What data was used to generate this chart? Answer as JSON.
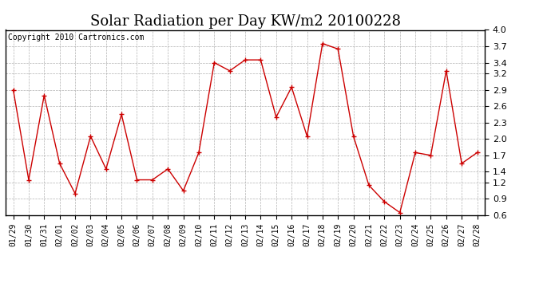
{
  "title": "Solar Radiation per Day KW/m2 20100228",
  "copyright": "Copyright 2010 Cartronics.com",
  "labels": [
    "01/29",
    "01/30",
    "01/31",
    "02/01",
    "02/02",
    "02/03",
    "02/04",
    "02/05",
    "02/06",
    "02/07",
    "02/08",
    "02/09",
    "02/10",
    "02/11",
    "02/12",
    "02/13",
    "02/14",
    "02/15",
    "02/16",
    "02/17",
    "02/18",
    "02/19",
    "02/20",
    "02/21",
    "02/22",
    "02/23",
    "02/24",
    "02/25",
    "02/26",
    "02/27",
    "02/28"
  ],
  "values": [
    2.9,
    1.25,
    2.8,
    1.55,
    1.0,
    2.05,
    1.45,
    2.45,
    1.25,
    1.25,
    1.45,
    1.05,
    1.75,
    3.4,
    3.25,
    3.45,
    3.45,
    2.4,
    2.95,
    2.05,
    3.75,
    3.65,
    2.05,
    1.15,
    0.85,
    0.65,
    1.75,
    1.7,
    3.25,
    1.55,
    1.75
  ],
  "line_color": "#cc0000",
  "marker": "+",
  "marker_size": 5,
  "ylim": [
    0.6,
    4.0
  ],
  "yticks": [
    0.6,
    0.9,
    1.2,
    1.4,
    1.7,
    2.0,
    2.3,
    2.6,
    2.9,
    3.2,
    3.4,
    3.7,
    4.0
  ],
  "bg_color": "#ffffff",
  "grid_color": "#aaaaaa",
  "title_fontsize": 13,
  "copyright_fontsize": 7,
  "tick_fontsize": 7,
  "ytick_fontsize": 8
}
